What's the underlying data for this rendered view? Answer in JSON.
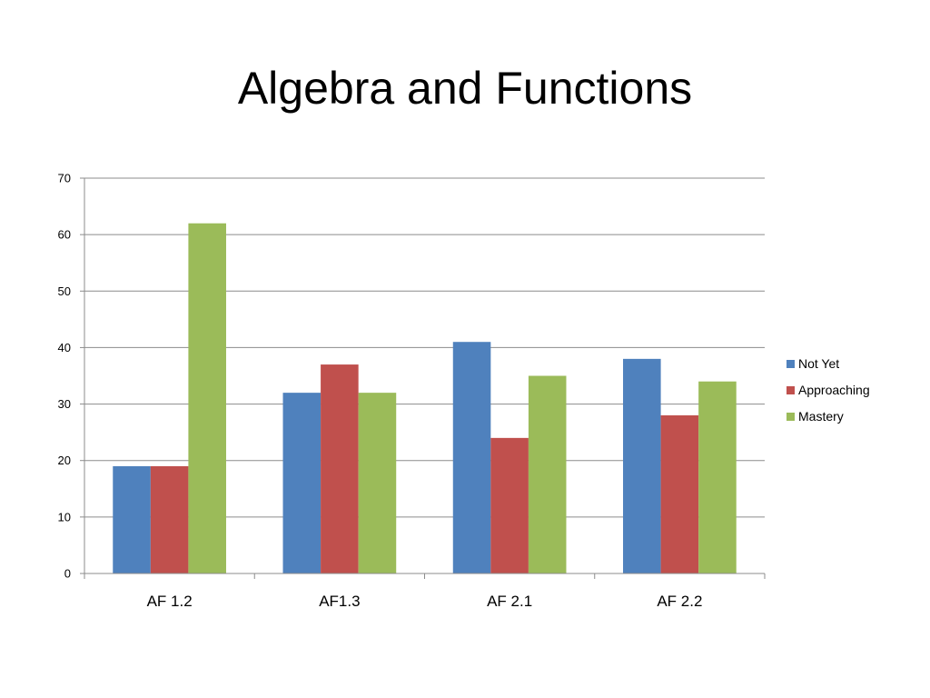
{
  "chart_data": {
    "type": "bar",
    "title": "Algebra and Functions",
    "xlabel": "",
    "ylabel": "",
    "categories": [
      "AF 1.2",
      "AF1.3",
      "AF 2.1",
      "AF 2.2"
    ],
    "series": [
      {
        "name": "Not Yet",
        "values": [
          19,
          32,
          41,
          38
        ],
        "color": "#4F81BD"
      },
      {
        "name": "Approaching",
        "values": [
          19,
          37,
          24,
          28
        ],
        "color": "#C0504D"
      },
      {
        "name": "Mastery",
        "values": [
          62,
          32,
          35,
          34
        ],
        "color": "#9BBB59"
      }
    ],
    "ylim": [
      0,
      70
    ],
    "yticks": [
      0,
      10,
      20,
      30,
      40,
      50,
      60,
      70
    ],
    "grid": true,
    "legend": "right"
  }
}
